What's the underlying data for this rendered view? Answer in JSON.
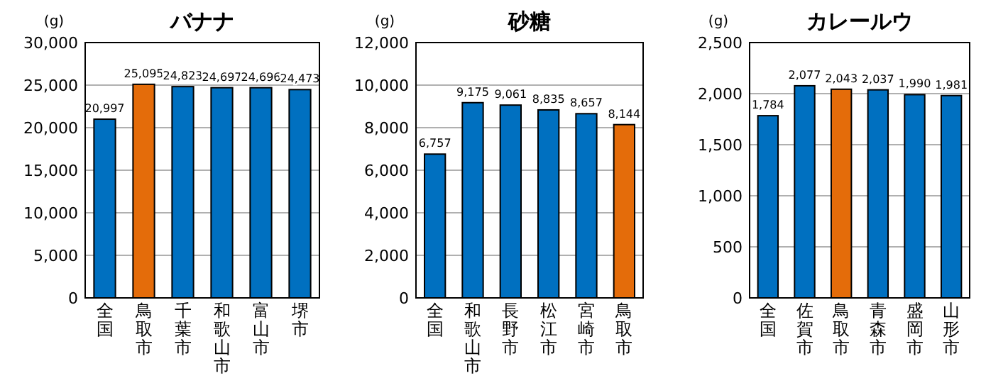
{
  "chart_data": [
    {
      "type": "bar",
      "title": "バナナ",
      "ylabel": "(g)",
      "categories": [
        "全国",
        "鳥取市",
        "千葉市",
        "和歌山市",
        "富山市",
        "堺市"
      ],
      "values": [
        20997,
        25095,
        24823,
        24697,
        24696,
        24473
      ],
      "value_labels": [
        "20,997",
        "25,095",
        "24,823",
        "24,697",
        "24,696",
        "24,473"
      ],
      "colors": [
        "#0070c0",
        "#e46c0a",
        "#0070c0",
        "#0070c0",
        "#0070c0",
        "#0070c0"
      ],
      "ylim": [
        0,
        30000
      ],
      "yticks": [
        {
          "value": 0,
          "label": "0"
        },
        {
          "value": 5000,
          "label": "5,000"
        },
        {
          "value": 10000,
          "label": "10,000"
        },
        {
          "value": 15000,
          "label": "15,000"
        },
        {
          "value": 20000,
          "label": "20,000"
        },
        {
          "value": 25000,
          "label": "25,000"
        },
        {
          "value": 30000,
          "label": "30,000"
        }
      ],
      "grid": "y"
    },
    {
      "type": "bar",
      "title": "砂糖",
      "ylabel": "(g)",
      "categories": [
        "全国",
        "和歌山市",
        "長野市",
        "松江市",
        "宮崎市",
        "鳥取市"
      ],
      "values": [
        6757,
        9175,
        9061,
        8835,
        8657,
        8144
      ],
      "value_labels": [
        "6,757",
        "9,175",
        "9,061",
        "8,835",
        "8,657",
        "8,144"
      ],
      "colors": [
        "#0070c0",
        "#0070c0",
        "#0070c0",
        "#0070c0",
        "#0070c0",
        "#e46c0a"
      ],
      "ylim": [
        0,
        12000
      ],
      "yticks": [
        {
          "value": 0,
          "label": "0"
        },
        {
          "value": 2000,
          "label": "2,000"
        },
        {
          "value": 4000,
          "label": "4,000"
        },
        {
          "value": 6000,
          "label": "6,000"
        },
        {
          "value": 8000,
          "label": "8,000"
        },
        {
          "value": 10000,
          "label": "10,000"
        },
        {
          "value": 12000,
          "label": "12,000"
        }
      ],
      "grid": "y"
    },
    {
      "type": "bar",
      "title": "カレールウ",
      "ylabel": "(g)",
      "categories": [
        "全国",
        "佐賀市",
        "鳥取市",
        "青森市",
        "盛岡市",
        "山形市"
      ],
      "values": [
        1784,
        2077,
        2043,
        2037,
        1990,
        1981
      ],
      "value_labels": [
        "1,784",
        "2,077",
        "2,043",
        "2,037",
        "1,990",
        "1,981"
      ],
      "colors": [
        "#0070c0",
        "#0070c0",
        "#e46c0a",
        "#0070c0",
        "#0070c0",
        "#0070c0"
      ],
      "ylim": [
        0,
        2500
      ],
      "yticks": [
        {
          "value": 0,
          "label": "0"
        },
        {
          "value": 500,
          "label": "500"
        },
        {
          "value": 1000,
          "label": "1,000"
        },
        {
          "value": 1500,
          "label": "1,500"
        },
        {
          "value": 2000,
          "label": "2,000"
        },
        {
          "value": 2500,
          "label": "2,500"
        }
      ],
      "grid": "y"
    }
  ]
}
